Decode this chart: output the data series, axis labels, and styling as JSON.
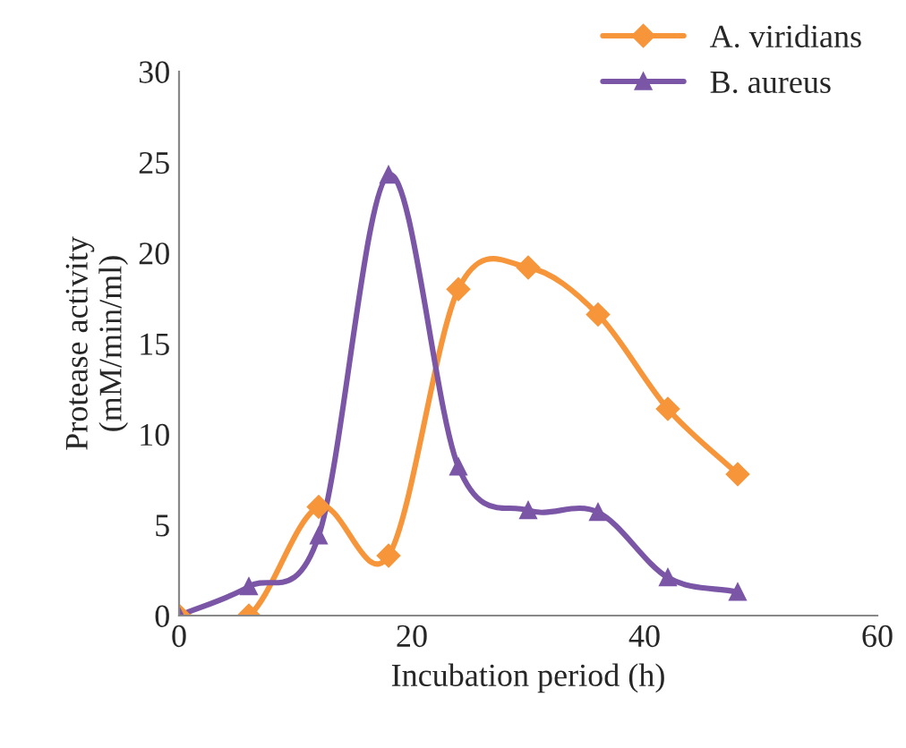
{
  "chart_data": {
    "type": "line",
    "xlabel": "Incubation period (h)",
    "ylabel": "Protease activity\n(mM/min/ml)",
    "x": [
      0,
      6,
      12,
      18,
      24,
      30,
      36,
      42,
      48
    ],
    "series": [
      {
        "name": "A. viridians",
        "color": "#f7953a",
        "marker": "diamond",
        "values": [
          0,
          0,
          6,
          3.3,
          18,
          19.2,
          16.6,
          11.4,
          7.8
        ]
      },
      {
        "name": "B. aureus",
        "color": "#7b56a6",
        "marker": "triangle",
        "values": [
          0,
          1.6,
          4.4,
          24.3,
          8.2,
          5.8,
          5.7,
          2.1,
          1.3
        ]
      }
    ],
    "xlim": [
      0,
      60
    ],
    "xticks": [
      0,
      20,
      40,
      60
    ],
    "ylim": [
      0,
      30
    ],
    "yticks": [
      0,
      5,
      10,
      15,
      20,
      25,
      30
    ],
    "legend": "top right",
    "grid": false,
    "line_style": "solid"
  }
}
